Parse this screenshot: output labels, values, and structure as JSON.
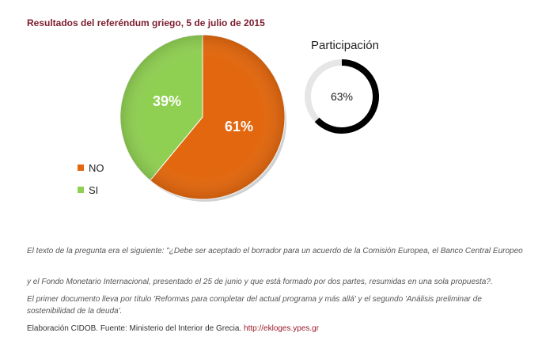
{
  "title": "Resultados del referéndum griego, 5 de julio de 2015",
  "chart_data": [
    {
      "type": "pie",
      "title": "",
      "categories": [
        "NO",
        "SI"
      ],
      "values": [
        61,
        39
      ],
      "labels": [
        "61%",
        "39%"
      ],
      "colors": [
        "#e2670e",
        "#8fcf52"
      ],
      "legend": [
        {
          "label": "NO",
          "color": "#e2670e"
        },
        {
          "label": "SI",
          "color": "#8fcf52"
        }
      ],
      "legend_position": "bottom-left"
    },
    {
      "type": "pie",
      "title": "Participación",
      "value": 63,
      "label": "63%",
      "colors": [
        "#000000",
        "#e6e6e6"
      ]
    }
  ],
  "notes": [
    "El texto de la pregunta era el siguiente: \"¿Debe ser aceptado el borrador para un acuerdo de la Comisión Europea, el Banco Central Europeo",
    "y el Fondo Monetario Internacional, presentado el 25 de junio y que está formado por dos partes, resumidas en una sola propuesta?.",
    "El primer documento lleva por título 'Reformas para completar del actual programa y más allá' y el segundo 'Análisis preliminar de sostenibilidad de la deuda'."
  ],
  "credit": {
    "text": "Elaboración CIDOB. Fuente: Ministerio del Interior de Grecia.",
    "link": "http://ekloges.ypes.gr"
  }
}
